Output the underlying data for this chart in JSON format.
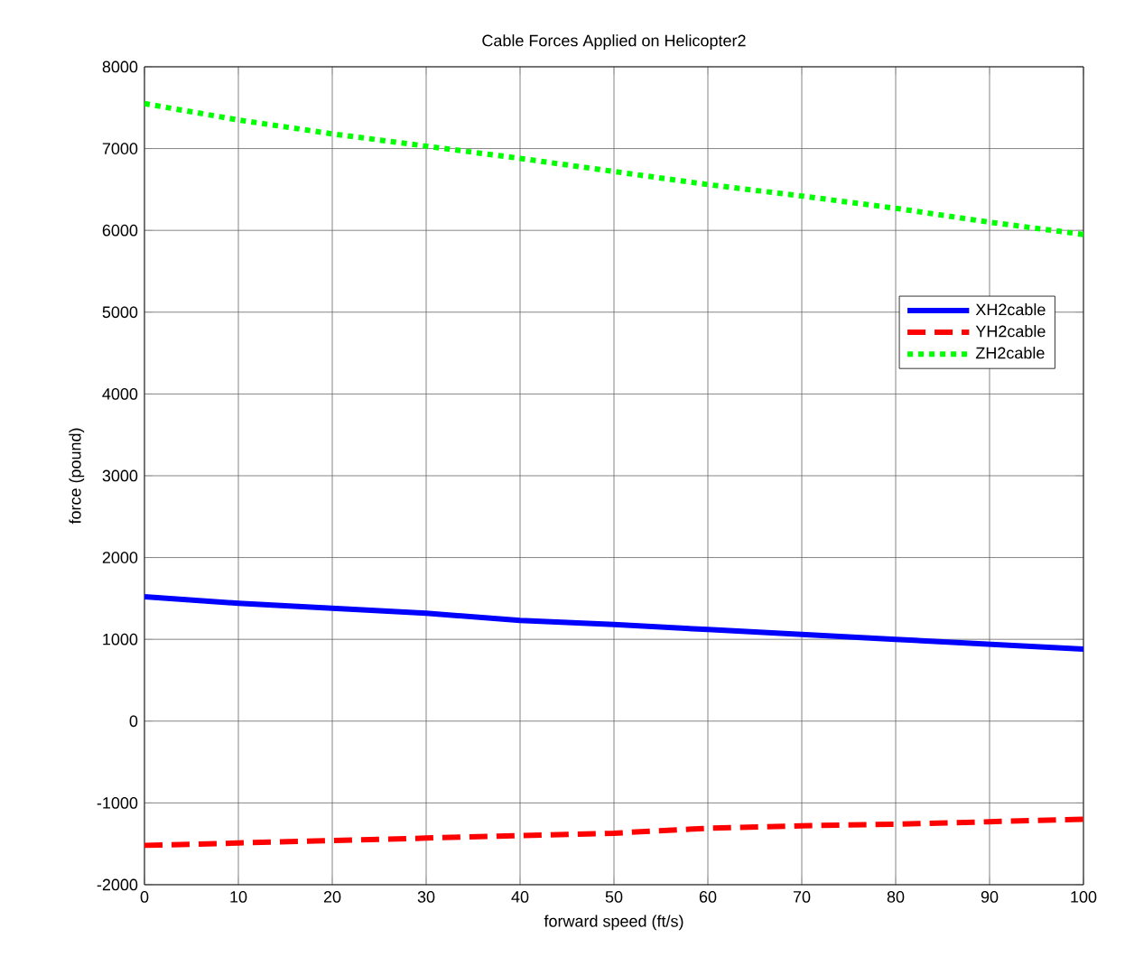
{
  "chart_data": {
    "type": "line",
    "title": "Cable Forces Applied on Helicopter2",
    "xlabel": "forward speed (ft/s)",
    "ylabel": "force (pound)",
    "x": [
      0,
      10,
      20,
      30,
      40,
      50,
      60,
      70,
      80,
      90,
      100
    ],
    "series": [
      {
        "name": "XH2cable",
        "color": "#0000ff",
        "line_style": "solid",
        "values": [
          1520,
          1440,
          1380,
          1320,
          1230,
          1180,
          1120,
          1060,
          1000,
          940,
          880
        ]
      },
      {
        "name": "YH2cable",
        "color": "#ff0000",
        "line_style": "dashed",
        "values": [
          -1520,
          -1490,
          -1460,
          -1430,
          -1400,
          -1370,
          -1310,
          -1280,
          -1260,
          -1230,
          -1200
        ]
      },
      {
        "name": "ZH2cable",
        "color": "#00ff00",
        "line_style": "dotted",
        "values": [
          7550,
          7350,
          7180,
          7030,
          6880,
          6720,
          6560,
          6420,
          6270,
          6100,
          5950
        ]
      }
    ],
    "xlim": [
      0,
      100
    ],
    "xticks": [
      0,
      10,
      20,
      30,
      40,
      50,
      60,
      70,
      80,
      90,
      100
    ],
    "ylim": [
      -2000,
      8000
    ],
    "yticks": [
      -2000,
      -1000,
      0,
      1000,
      2000,
      3000,
      4000,
      5000,
      6000,
      7000,
      8000
    ],
    "grid": true,
    "legend": "right"
  }
}
